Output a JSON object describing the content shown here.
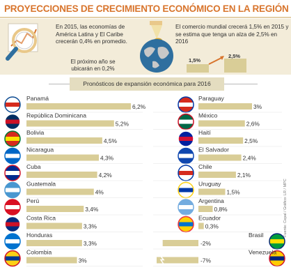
{
  "header": {
    "title": "PROYECCIONES DE CRECIMIENTO ECONÓMICO EN LA REGIÓN"
  },
  "notes": {
    "main": "En 2015, las economías de América Latina y El Caribe crecerán 0,4% en promedio.",
    "sub": "El próximo año se ubicarán en 0,2%",
    "trade": "El comercio mundial crecerá 1,5% en 2015 y se estima que tenga un alza de 2,5% en 2016",
    "trade_2015": "1,5%",
    "trade_2016": "2,5%"
  },
  "subtitle": "Pronósticos de expansión económica para 2016",
  "source": "Fuente: Cepal / Gráfico: LR / MPC",
  "colors": {
    "title": "#d8742c",
    "bar": "#d9cd97",
    "panel": "#f3ecd9",
    "negative_bar": "#d9cd97"
  },
  "chart_data": {
    "type": "bar",
    "title": "Pronósticos de expansión económica para 2016",
    "unit": "%",
    "series": [
      {
        "categories": [
          "Panamá",
          "República Dominicana",
          "Bolivia",
          "Nicaragua",
          "Cuba",
          "Guatemala",
          "Perú",
          "Costa Rica",
          "Honduras",
          "Colombia"
        ],
        "values": [
          6.2,
          5.2,
          4.5,
          4.3,
          4.2,
          4.0,
          3.4,
          3.3,
          3.3,
          3.0
        ],
        "labels": [
          "6,2%",
          "5,2%",
          "4,5%",
          "4,3%",
          "4,2%",
          "4%",
          "3,4%",
          "3,3%",
          "3,3%",
          "3%"
        ]
      },
      {
        "categories": [
          "Paraguay",
          "México",
          "Haití",
          "El Salvador",
          "Chile",
          "Uruguay",
          "Argentina",
          "Ecuador",
          "Brasil",
          "Venezuela"
        ],
        "values": [
          3.0,
          2.6,
          2.5,
          2.4,
          2.1,
          1.5,
          0.8,
          0.3,
          -2.0,
          -7.0
        ],
        "labels": [
          "3%",
          "2,6%",
          "2,5%",
          "2,4%",
          "2,1%",
          "1,5%",
          "0,8%",
          "0,3%",
          "-2%",
          "-7%"
        ]
      }
    ]
  }
}
